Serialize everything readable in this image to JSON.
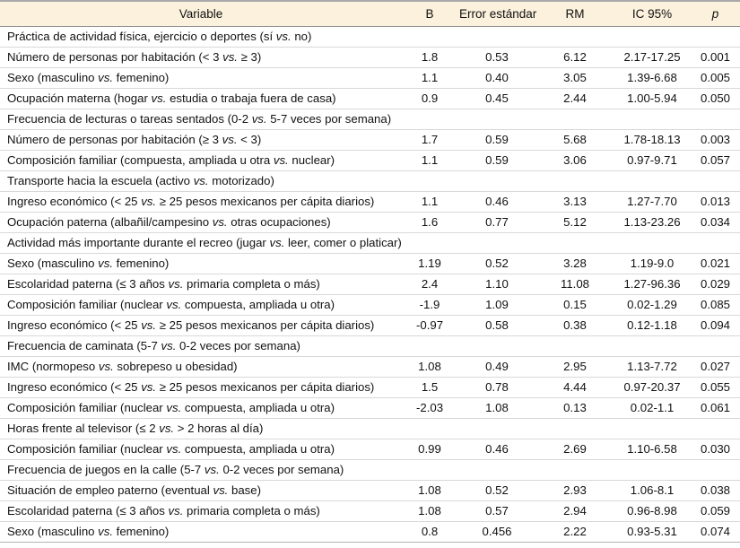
{
  "theme": {
    "header_background": "#fbf1dc",
    "row_separator_color": "#d8d8d8",
    "top_border_color": "#a9a9a9"
  },
  "table": {
    "columns": [
      {
        "label": "Variable"
      },
      {
        "label": "B"
      },
      {
        "label": "Error estándar"
      },
      {
        "label": "RM"
      },
      {
        "label": "IC 95%"
      },
      {
        "label": "p"
      }
    ],
    "rows": [
      {
        "type": "section",
        "variable": "Práctica de actividad física, ejercicio o deportes (sí vs. no)"
      },
      {
        "type": "data",
        "variable": "Número de personas por habitación (< 3 vs. ≥ 3)",
        "b": "1.8",
        "se": "0.53",
        "rm": "6.12",
        "ic": "2.17-17.25",
        "p": "0.001"
      },
      {
        "type": "data",
        "variable": "Sexo (masculino vs. femenino)",
        "b": "1.1",
        "se": "0.40",
        "rm": "3.05",
        "ic": "1.39-6.68",
        "p": "0.005"
      },
      {
        "type": "data",
        "variable": "Ocupación materna (hogar vs. estudia o trabaja fuera de casa)",
        "b": "0.9",
        "se": "0.45",
        "rm": "2.44",
        "ic": "1.00-5.94",
        "p": "0.050"
      },
      {
        "type": "section",
        "variable": "Frecuencia de lecturas o tareas sentados (0-2 vs. 5-7 veces por semana)"
      },
      {
        "type": "data",
        "variable": "Número de personas por habitación (≥ 3 vs. < 3)",
        "b": "1.7",
        "se": "0.59",
        "rm": "5.68",
        "ic": "1.78-18.13",
        "p": "0.003"
      },
      {
        "type": "data",
        "variable": "Composición familiar (compuesta, ampliada u otra vs. nuclear)",
        "b": "1.1",
        "se": "0.59",
        "rm": "3.06",
        "ic": "0.97-9.71",
        "p": "0.057"
      },
      {
        "type": "section",
        "variable": "Transporte hacia la escuela (activo vs. motorizado)"
      },
      {
        "type": "data",
        "variable": "Ingreso económico (< 25 vs. ≥ 25 pesos mexicanos per cápita diarios)",
        "b": "1.1",
        "se": "0.46",
        "rm": "3.13",
        "ic": "1.27-7.70",
        "p": "0.013"
      },
      {
        "type": "data",
        "variable": "Ocupación paterna (albañil/campesino vs. otras ocupaciones)",
        "b": "1.6",
        "se": "0.77",
        "rm": "5.12",
        "ic": "1.13-23.26",
        "p": "0.034"
      },
      {
        "type": "section",
        "variable": "Actividad más importante durante el recreo (jugar vs. leer, comer o platicar)"
      },
      {
        "type": "data",
        "variable": "Sexo (masculino vs. femenino)",
        "b": "1.19",
        "se": "0.52",
        "rm": "3.28",
        "ic": "1.19-9.0",
        "p": "0.021"
      },
      {
        "type": "data",
        "variable": "Escolaridad paterna (≤ 3 años vs. primaria completa o más)",
        "b": "2.4",
        "se": "1.10",
        "rm": "11.08",
        "ic": "1.27-96.36",
        "p": "0.029"
      },
      {
        "type": "data",
        "variable": "Composición familiar (nuclear vs. compuesta, ampliada u otra)",
        "b": "-1.9",
        "se": "1.09",
        "rm": "0.15",
        "ic": "0.02-1.29",
        "p": "0.085"
      },
      {
        "type": "data",
        "variable": "Ingreso económico (< 25 vs. ≥ 25 pesos mexicanos per cápita diarios)",
        "b": "-0.97",
        "se": "0.58",
        "rm": "0.38",
        "ic": "0.12-1.18",
        "p": "0.094"
      },
      {
        "type": "section",
        "variable": "Frecuencia de caminata (5-7 vs. 0-2 veces por semana)"
      },
      {
        "type": "data",
        "variable": "IMC (normopeso vs. sobrepeso u obesidad)",
        "b": "1.08",
        "se": "0.49",
        "rm": "2.95",
        "ic": "1.13-7.72",
        "p": "0.027"
      },
      {
        "type": "data",
        "variable": "Ingreso económico (< 25 vs. ≥ 25 pesos mexicanos per cápita diarios)",
        "b": "1.5",
        "se": "0.78",
        "rm": "4.44",
        "ic": "0.97-20.37",
        "p": "0.055"
      },
      {
        "type": "data",
        "variable": "Composición familiar (nuclear vs. compuesta, ampliada u otra)",
        "b": "-2.03",
        "se": "1.08",
        "rm": "0.13",
        "ic": "0.02-1.1",
        "p": "0.061"
      },
      {
        "type": "section",
        "variable": "Horas frente al televisor (≤ 2 vs. > 2 horas al día)"
      },
      {
        "type": "data",
        "variable": "Composición familiar (nuclear vs. compuesta, ampliada u otra)",
        "b": "0.99",
        "se": "0.46",
        "rm": "2.69",
        "ic": "1.10-6.58",
        "p": "0.030"
      },
      {
        "type": "section",
        "variable": "Frecuencia de juegos en la calle (5-7 vs. 0-2 veces por semana)"
      },
      {
        "type": "data",
        "variable": "Situación de empleo paterno (eventual vs. base)",
        "b": "1.08",
        "se": "0.52",
        "rm": "2.93",
        "ic": "1.06-8.1",
        "p": "0.038"
      },
      {
        "type": "data",
        "variable": "Escolaridad paterna (≤ 3 años vs. primaria completa o más)",
        "b": "1.08",
        "se": "0.57",
        "rm": "2.94",
        "ic": "0.96-8.98",
        "p": "0.059"
      },
      {
        "type": "data",
        "variable": "Sexo (masculino vs. femenino)",
        "b": "0.8",
        "se": "0.456",
        "rm": "2.22",
        "ic": "0.93-5.31",
        "p": "0.074"
      }
    ]
  }
}
